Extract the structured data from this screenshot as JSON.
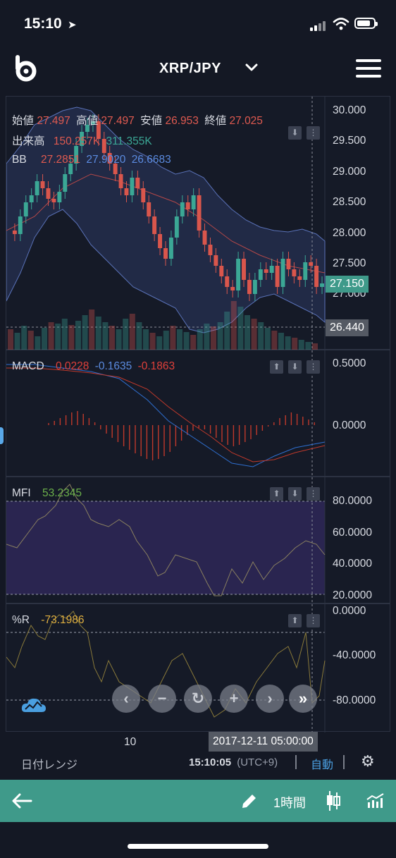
{
  "status": {
    "time": "15:10"
  },
  "header": {
    "pair": "XRP/JPY"
  },
  "price_panel": {
    "open_label": "始値",
    "open": "27.497",
    "high_label": "高値",
    "high": "27.497",
    "low_label": "安値",
    "low": "26.953",
    "close_label": "終値",
    "close": "27.025",
    "volume_label": "出来高",
    "volume_1": "150.257K",
    "volume_2": "311.355K",
    "bb_label": "BB",
    "bb_1": "27.2851",
    "bb_2": "27.9020",
    "bb_3": "26.6683",
    "axis": [
      "30.000",
      "29.500",
      "29.000",
      "28.500",
      "28.000",
      "27.500",
      "27.000"
    ],
    "current_price": "27.150",
    "low_marker": "26.440"
  },
  "macd_panel": {
    "label": "MACD",
    "v1": "0.0228",
    "v2": "-0.1635",
    "v3": "-0.1863",
    "axis": [
      "0.5000",
      "0.0000"
    ]
  },
  "mfi_panel": {
    "label": "MFI",
    "v1": "53.2345",
    "axis": [
      "80.0000",
      "60.0000",
      "40.0000",
      "20.0000"
    ]
  },
  "wr_panel": {
    "label": "%R",
    "v1": "-73.1986",
    "axis": [
      "0.0000",
      "-40.0000",
      "-80.0000"
    ]
  },
  "time_axis": {
    "tick": "10",
    "crosshair_time": "2017-12-11 05:00:00"
  },
  "footer": {
    "date_range": "日付レンジ",
    "clock": "15:10:05",
    "tz": "(UTC+9)",
    "auto": "自動"
  },
  "toolbar": {
    "timeframe": "1時間"
  },
  "colors": {
    "accent": "#3f9a8a",
    "up": "#3ba795",
    "down": "#d9564c"
  }
}
